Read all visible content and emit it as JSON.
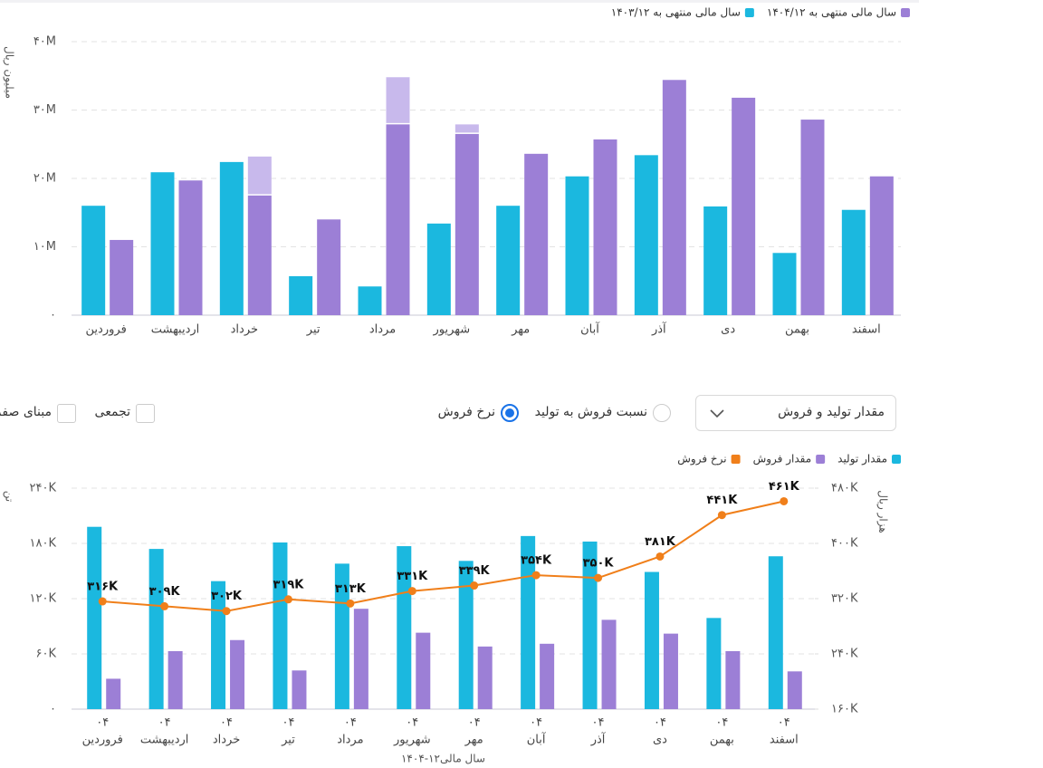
{
  "chart_data": [
    {
      "type": "bar",
      "y_label": "میلیون ریال",
      "categories": [
        "فروردین",
        "اردیبهشت",
        "خرداد",
        "تیر",
        "مرداد",
        "شهریور",
        "مهر",
        "آبان",
        "آذر",
        "دی",
        "بهمن",
        "اسفند"
      ],
      "series": [
        {
          "name": "سال مالی منتهی به ۱۴۰۳/۱۲",
          "color": "#1bb8df",
          "values": [
            16000000,
            20900000,
            22400000,
            5700000,
            4200000,
            13400000,
            16000000,
            20300000,
            23400000,
            15900000,
            9100000,
            15400000
          ]
        },
        {
          "name": "سال مالی منتهی به ۱۴۰۴/۱۲",
          "color": "#9c7fd6",
          "values": [
            11000000,
            19700000,
            17500000,
            14000000,
            27900000,
            26500000,
            23600000,
            25700000,
            34400000,
            31800000,
            28600000,
            20300000
          ]
        },
        {
          "color": "#c8b9ec",
          "stacked": true,
          "values": [
            null,
            null,
            5700000,
            null,
            6900000,
            1400000,
            null,
            null,
            null,
            null,
            null,
            null
          ]
        }
      ],
      "ylim": [
        0,
        40000000
      ],
      "yticks": [
        {
          "value": 0,
          "label": "۰"
        },
        {
          "value": 10000000,
          "label": "۱۰M"
        },
        {
          "value": 20000000,
          "label": "۲۰M"
        },
        {
          "value": 30000000,
          "label": "۳۰M"
        },
        {
          "value": 40000000,
          "label": "۴۰M"
        }
      ],
      "grid": true
    },
    {
      "type": "combo",
      "x_label": "سال مالی۱۲-۱۴۰۴",
      "y_label": "تن",
      "y2_label": "هزار ریال",
      "categories": [
        [
          "۰۴",
          "فروردین"
        ],
        [
          "۰۴",
          "اردیبهشت"
        ],
        [
          "۰۴",
          "خرداد"
        ],
        [
          "۰۴",
          "تیر"
        ],
        [
          "۰۴",
          "مرداد"
        ],
        [
          "۰۴",
          "شهریور"
        ],
        [
          "۰۴",
          "مهر"
        ],
        [
          "۰۴",
          "آبان"
        ],
        [
          "۰۴",
          "آذر"
        ],
        [
          "۰۴",
          "دی"
        ],
        [
          "۰۴",
          "بهمن"
        ],
        [
          "۰۴",
          "اسفند"
        ]
      ],
      "series": [
        {
          "name": "مقدار تولید",
          "type": "bar",
          "color": "#1bb8df",
          "values": [
            198000,
            174000,
            139000,
            181000,
            158000,
            177000,
            161000,
            188000,
            182000,
            149000,
            99000,
            166000
          ]
        },
        {
          "name": "مقدار فروش",
          "type": "bar",
          "color": "#9c7fd6",
          "values": [
            33000,
            63000,
            75000,
            42000,
            109000,
            83000,
            68000,
            71000,
            97000,
            82000,
            63000,
            41000
          ]
        },
        {
          "name": "نرخ فروش",
          "type": "line",
          "axis": "y2",
          "color": "#f07f1a",
          "values": [
            316000,
            309000,
            302000,
            319000,
            313000,
            331000,
            339000,
            354000,
            350000,
            381000,
            441000,
            461000
          ],
          "value_labels": [
            "۳۱۶K",
            "۳۰۹K",
            "۳۰۲K",
            "۳۱۹K",
            "۳۱۳K",
            "۳۳۱K",
            "۳۳۹K",
            "۳۵۴K",
            "۳۵۰K",
            "۳۸۱K",
            "۴۴۱K",
            "۴۶۱K"
          ]
        }
      ],
      "ylim": [
        0,
        240000
      ],
      "yticks": [
        {
          "value": 0,
          "label": "۰"
        },
        {
          "value": 60000,
          "label": "۶۰K"
        },
        {
          "value": 120000,
          "label": "۱۲۰K"
        },
        {
          "value": 180000,
          "label": "۱۸۰K"
        },
        {
          "value": 240000,
          "label": "۲۴۰K"
        }
      ],
      "y2lim": [
        160000,
        480000
      ],
      "y2ticks": [
        {
          "value": 160000,
          "label": "۱۶۰K"
        },
        {
          "value": 240000,
          "label": "۲۴۰K"
        },
        {
          "value": 320000,
          "label": "۳۲۰K"
        },
        {
          "value": 400000,
          "label": "۴۰۰K"
        },
        {
          "value": 480000,
          "label": "۴۸۰K"
        }
      ],
      "grid": true
    }
  ],
  "controls": {
    "dropdown": "مقدار تولید و فروش",
    "radios": [
      {
        "label": "نسبت فروش به تولید",
        "checked": false
      },
      {
        "label": "نرخ فروش",
        "checked": true
      }
    ],
    "checkboxes": [
      {
        "label": "تجمعی",
        "checked": false
      },
      {
        "label": "مبنای صفر",
        "checked": false
      }
    ]
  }
}
